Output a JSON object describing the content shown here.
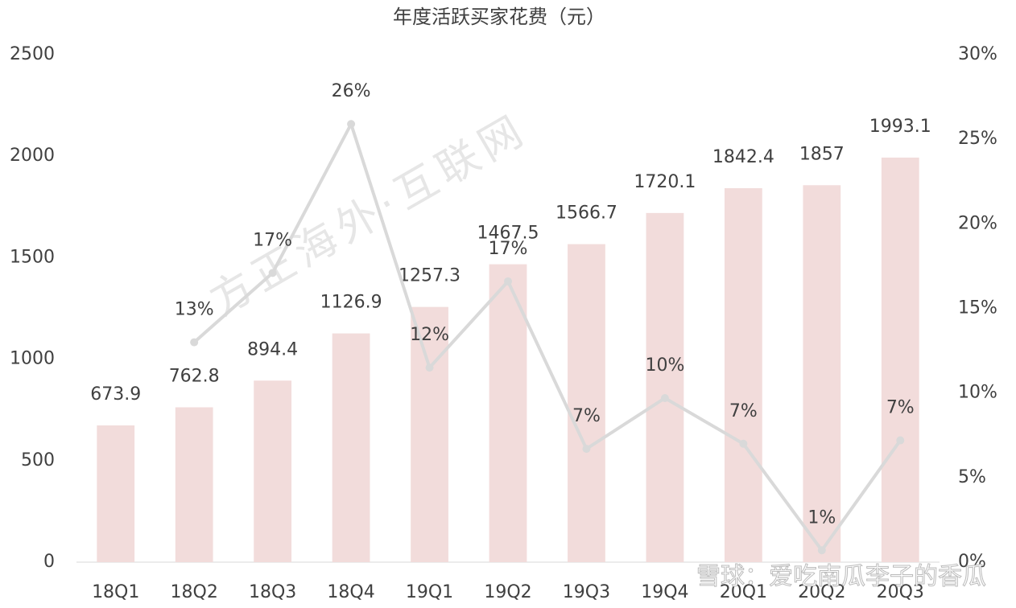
{
  "chart_data": {
    "type": "bar_line",
    "title": "年度活跃买家花费（元）",
    "categories": [
      "18Q1",
      "18Q2",
      "18Q3",
      "18Q4",
      "19Q1",
      "19Q2",
      "19Q3",
      "19Q4",
      "20Q1",
      "20Q2",
      "20Q3"
    ],
    "series": [
      {
        "type": "bar",
        "color": "#f2dcdb",
        "values": [
          673.9,
          762.8,
          894.4,
          1126.9,
          1257.3,
          1467.5,
          1566.7,
          1720.1,
          1842.4,
          1857,
          1993.1
        ]
      },
      {
        "type": "line",
        "axis": "y2",
        "color": "#d9d9d9",
        "values": [
          null,
          13.0,
          17.1,
          25.9,
          11.5,
          16.6,
          6.7,
          9.7,
          7.0,
          0.7,
          7.2
        ],
        "value_labels": [
          null,
          "13%",
          "17%",
          "26%",
          "12%",
          "17%",
          "7%",
          "10%",
          "7%",
          "1%",
          "7%"
        ]
      }
    ],
    "ylim": [
      0,
      2500
    ],
    "yticks": [
      0,
      500,
      1000,
      1500,
      2000,
      2500
    ],
    "y2lim": [
      0,
      30
    ],
    "y2ticks": [
      {
        "value": 0,
        "label": "0%"
      },
      {
        "value": 5,
        "label": "5%"
      },
      {
        "value": 10,
        "label": "10%"
      },
      {
        "value": 15,
        "label": "15%"
      },
      {
        "value": 20,
        "label": "20%"
      },
      {
        "value": 25,
        "label": "25%"
      },
      {
        "value": 30,
        "label": "30%"
      }
    ],
    "watermarks": [
      "方正海外·互联网",
      "雪球：爱吃南瓜李子的香瓜"
    ]
  }
}
